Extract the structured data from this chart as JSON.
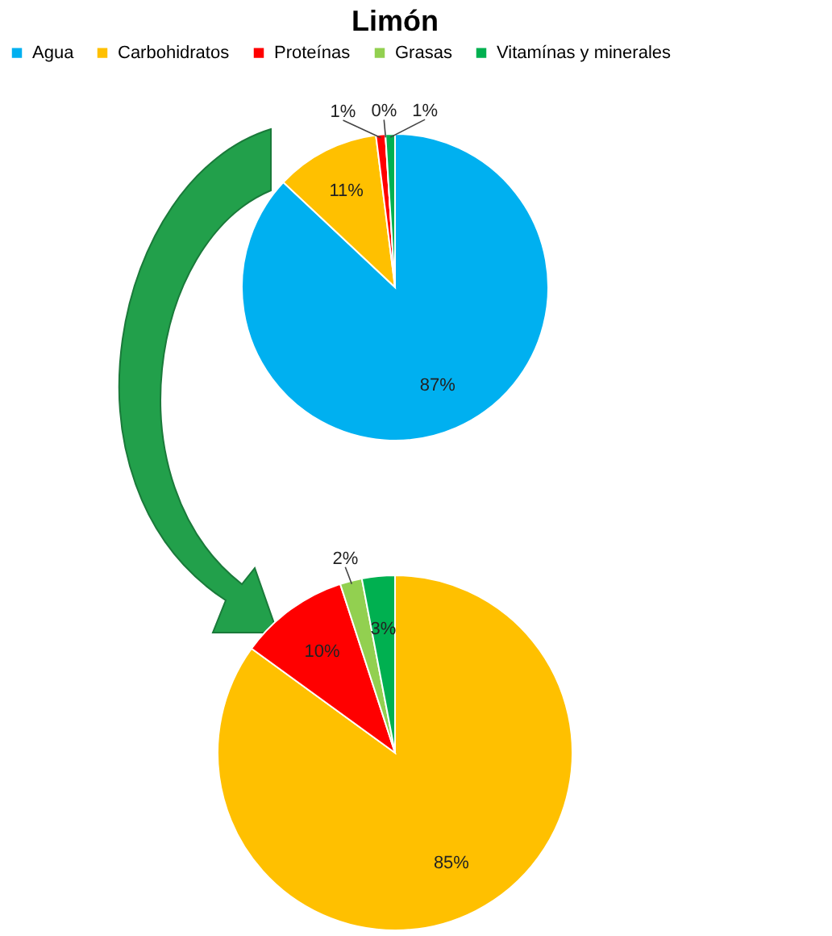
{
  "chart_data": [
    {
      "type": "pie",
      "title": "Limón",
      "categories": [
        "Agua",
        "Carbohidratos",
        "Proteínas",
        "Grasas",
        "Vitamínas y minerales"
      ],
      "values": [
        87,
        11,
        1,
        0,
        1
      ],
      "colors": [
        "#00b0f0",
        "#ffc000",
        "#ff0000",
        "#92d050",
        "#00b050"
      ],
      "value_labels": [
        "87%",
        "11%",
        "1%",
        "0%",
        "1%"
      ],
      "legend": "top"
    },
    {
      "type": "pie",
      "categories": [
        null,
        null,
        null,
        null
      ],
      "values": [
        85,
        10,
        2,
        3
      ],
      "colors": [
        "#ffc000",
        "#ff0000",
        "#92d050",
        "#00b050"
      ],
      "value_labels": [
        "85%",
        "10%",
        "2%",
        "3%"
      ]
    }
  ]
}
